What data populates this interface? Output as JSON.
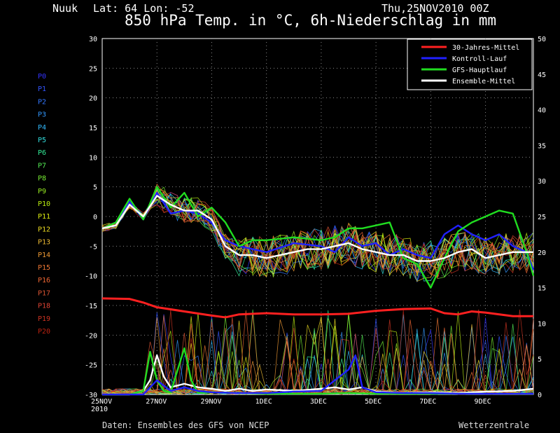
{
  "header": {
    "location": "Nuuk",
    "coords": "Lat: 64 Lon: -52",
    "date": "Thu,25NOV2010 00Z",
    "title": "850 hPa Temp. in °C, 6h-Niederschlag in mm"
  },
  "footer": {
    "source": "Daten: Ensembles des GFS von NCEP",
    "brand": "Wetterzentrale"
  },
  "members": [
    {
      "name": "P0",
      "color": "#3333ff"
    },
    {
      "name": "P1",
      "color": "#3355ff"
    },
    {
      "name": "P2",
      "color": "#3377ff"
    },
    {
      "name": "P3",
      "color": "#3399ff"
    },
    {
      "name": "P4",
      "color": "#33bbff"
    },
    {
      "name": "P5",
      "color": "#33dddd"
    },
    {
      "name": "P6",
      "color": "#33ee99"
    },
    {
      "name": "P7",
      "color": "#55ee55"
    },
    {
      "name": "P8",
      "color": "#77ee33"
    },
    {
      "name": "P9",
      "color": "#99ee22"
    },
    {
      "name": "P10",
      "color": "#bbee11"
    },
    {
      "name": "P11",
      "color": "#ddee11"
    },
    {
      "name": "P12",
      "color": "#eedd22"
    },
    {
      "name": "P13",
      "color": "#eebb33"
    },
    {
      "name": "P14",
      "color": "#ee9933"
    },
    {
      "name": "P15",
      "color": "#ee7733"
    },
    {
      "name": "P16",
      "color": "#ee6633"
    },
    {
      "name": "P17",
      "color": "#dd5533"
    },
    {
      "name": "P18",
      "color": "#dd4433"
    },
    {
      "name": "P19",
      "color": "#cc3322"
    },
    {
      "name": "P20",
      "color": "#bb2211"
    }
  ],
  "chart_data": {
    "type": "line",
    "x_labels": [
      "25NOV\n2010",
      "27NOV",
      "29NOV",
      "1DEC",
      "3DEC",
      "5DEC",
      "7DEC",
      "9DEC"
    ],
    "x_range_days": [
      0,
      15.75
    ],
    "ylim_left": [
      -30,
      30
    ],
    "ylim_right": [
      0,
      50
    ],
    "yticks_left": [
      "30",
      "25",
      "20",
      "15",
      "10",
      "5",
      "0",
      "-5",
      "-10",
      "-15",
      "-20",
      "-25",
      "-30"
    ],
    "yticks_right": [
      "50",
      "45",
      "40",
      "35",
      "30",
      "25",
      "20",
      "15",
      "10",
      "5",
      "0"
    ],
    "grid": true,
    "legend": [
      {
        "name": "30-Jahres-Mittel",
        "color": "#ff2020"
      },
      {
        "name": "Kontroll-Lauf",
        "color": "#2020ff"
      },
      {
        "name": "GFS-Hauptlauf",
        "color": "#20dd20"
      },
      {
        "name": "Ensemble-Mittel",
        "color": "#ffffff"
      }
    ],
    "series": [
      {
        "name": "30-Jahres-Mittel",
        "axis": "left",
        "x_days": [
          0,
          1.0,
          1.5,
          2.0,
          3.0,
          4.0,
          4.5,
          5.0,
          6.0,
          7.0,
          8.0,
          9.0,
          10.0,
          11.0,
          12.0,
          12.5,
          13.0,
          13.5,
          14.0,
          15.0,
          15.75
        ],
        "values": [
          -13.8,
          -13.9,
          -14.5,
          -15.3,
          -16.0,
          -16.7,
          -17.0,
          -16.5,
          -16.3,
          -16.5,
          -16.5,
          -16.4,
          -15.9,
          -15.6,
          -15.5,
          -16.3,
          -16.5,
          -16.0,
          -16.2,
          -16.8,
          -16.8
        ]
      },
      {
        "name": "Kontroll-Lauf",
        "axis": "left",
        "x_days": [
          0,
          0.5,
          1.0,
          1.5,
          2.0,
          2.5,
          3.0,
          3.5,
          4.0,
          4.5,
          5.0,
          5.5,
          6.0,
          7.0,
          8.0,
          8.5,
          9.0,
          9.5,
          10.0,
          10.5,
          11.0,
          11.5,
          12.0,
          12.5,
          13.0,
          13.5,
          14.0,
          14.5,
          15.0,
          15.5,
          15.75
        ],
        "values": [
          -2,
          -1,
          2.5,
          -0.5,
          4,
          0.5,
          1,
          0.5,
          -1,
          -4,
          -5,
          -5.5,
          -6,
          -4.5,
          -5,
          -6,
          -3.5,
          -5,
          -4.5,
          -6.5,
          -5.5,
          -6.5,
          -7,
          -3,
          -1.5,
          -3,
          -4,
          -3,
          -5,
          -6,
          -9
        ]
      },
      {
        "name": "GFS-Hauptlauf",
        "axis": "left",
        "x_days": [
          0,
          0.5,
          1.0,
          1.5,
          2.0,
          2.5,
          3.0,
          3.5,
          4.0,
          4.5,
          5.0,
          5.5,
          6.0,
          7.0,
          8.0,
          8.5,
          9.0,
          9.5,
          10.0,
          10.5,
          11.0,
          11.5,
          12.0,
          12.5,
          13.0,
          13.5,
          14.0,
          14.5,
          15.0,
          15.5,
          15.75
        ],
        "values": [
          -2,
          -1,
          3,
          -0.5,
          5,
          1.5,
          4,
          0,
          1.5,
          -1,
          -5,
          -4,
          -4,
          -3.5,
          -4,
          -3.5,
          -2,
          -2,
          -1.5,
          -1,
          -7,
          -8,
          -12,
          -7,
          -2.5,
          -1,
          0,
          1,
          0.5,
          -6,
          -10
        ]
      },
      {
        "name": "Ensemble-Mittel",
        "axis": "left",
        "x_days": [
          0,
          0.5,
          1.0,
          1.5,
          2.0,
          2.5,
          3.0,
          3.5,
          4.0,
          4.5,
          5.0,
          5.5,
          6.0,
          6.5,
          7.0,
          7.5,
          8.0,
          8.5,
          9.0,
          9.5,
          10.0,
          10.5,
          11.0,
          11.5,
          12.0,
          12.5,
          13.0,
          13.5,
          14.0,
          14.5,
          15.0,
          15.5,
          15.75
        ],
        "values": [
          -2,
          -1.5,
          2,
          0,
          3.5,
          2,
          1,
          1,
          -0.5,
          -5,
          -6.5,
          -6.5,
          -7,
          -6.5,
          -6,
          -5.5,
          -5.5,
          -5,
          -4.5,
          -5.5,
          -6,
          -6.5,
          -6.5,
          -7.5,
          -7.5,
          -7,
          -6,
          -5.5,
          -7,
          -6.5,
          -6,
          -6,
          -6
        ]
      },
      {
        "name": "Ensemble-Mittel Niederschlag",
        "axis": "right",
        "x_days": [
          0,
          1.0,
          1.5,
          1.75,
          2.0,
          2.25,
          2.5,
          3.0,
          3.5,
          4.0,
          4.5,
          5.0,
          5.5,
          6.0,
          7.0,
          8.0,
          8.5,
          9.0,
          9.5,
          10.0,
          10.5,
          11.0,
          12.0,
          13.0,
          14.0,
          15.0,
          15.75
        ],
        "values": [
          0,
          0,
          0.5,
          2,
          5.5,
          2.5,
          1,
          1.5,
          1,
          0.8,
          0.5,
          0.8,
          0.5,
          0.7,
          0.5,
          0.8,
          1,
          0.7,
          1,
          0.4,
          0.3,
          0.2,
          0.3,
          0.2,
          0.4,
          0.5,
          0.8
        ]
      },
      {
        "name": "GFS-Hauptlauf Niederschlag",
        "axis": "right",
        "x_days": [
          0,
          1.0,
          1.5,
          1.75,
          2.0,
          2.25,
          2.5,
          3.0,
          3.25,
          3.5,
          4.0,
          5.0,
          6.0,
          7.0,
          8.0,
          9.0,
          10.0,
          11.0,
          12.0,
          13.0,
          14.0,
          15.0,
          15.75
        ],
        "values": [
          0,
          0,
          0.5,
          6,
          2,
          0.5,
          0.3,
          6.5,
          2,
          0.2,
          0.3,
          0.2,
          0.1,
          0.1,
          0.1,
          0.2,
          0.1,
          0.1,
          0.1,
          0.1,
          0.1,
          0.1,
          0.1
        ]
      },
      {
        "name": "Kontroll-Lauf Niederschlag",
        "axis": "right",
        "x_days": [
          0,
          1.5,
          2.0,
          2.5,
          3.0,
          3.5,
          4.0,
          5.0,
          6.0,
          7.0,
          8.0,
          8.5,
          9.0,
          9.25,
          9.5,
          10.0,
          11.0,
          12.0,
          13.0,
          14.0,
          15.0,
          15.75
        ],
        "values": [
          0,
          0,
          2,
          0.5,
          1,
          0.5,
          0.3,
          0.2,
          0.2,
          0.4,
          0.5,
          2,
          3.5,
          5.5,
          1,
          0.3,
          0.2,
          0.2,
          0.1,
          0.1,
          0.1,
          0.1
        ]
      }
    ]
  }
}
